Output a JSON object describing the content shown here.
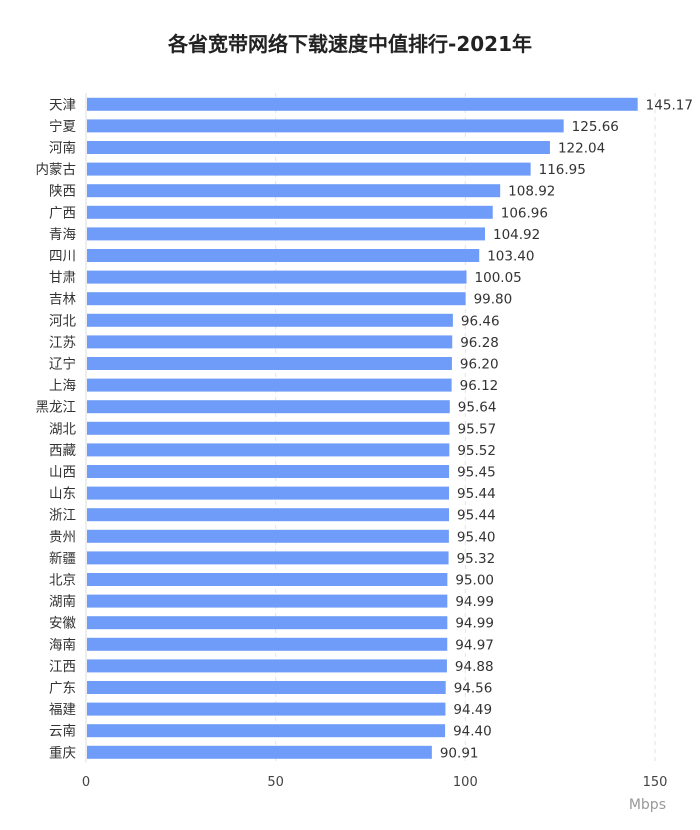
{
  "chart_data": {
    "type": "bar",
    "orientation": "horizontal",
    "title": "各省宽带网络下载速度中值排行-2021年",
    "xlabel": "Mbps",
    "ylabel": "",
    "xlim": [
      0,
      150
    ],
    "xticks": [
      0,
      50,
      100,
      150
    ],
    "grid": "vertical dashed",
    "bar_color": "#6f9cf8",
    "categories": [
      "天津",
      "宁夏",
      "河南",
      "内蒙古",
      "陕西",
      "广西",
      "青海",
      "四川",
      "甘肃",
      "吉林",
      "河北",
      "江苏",
      "辽宁",
      "上海",
      "黑龙江",
      "湖北",
      "西藏",
      "山西",
      "山东",
      "浙江",
      "贵州",
      "新疆",
      "北京",
      "湖南",
      "安徽",
      "海南",
      "江西",
      "广东",
      "福建",
      "云南",
      "重庆"
    ],
    "values": [
      145.17,
      125.66,
      122.04,
      116.95,
      108.92,
      106.96,
      104.92,
      103.4,
      100.05,
      99.8,
      96.46,
      96.28,
      96.2,
      96.12,
      95.64,
      95.57,
      95.52,
      95.45,
      95.44,
      95.44,
      95.4,
      95.32,
      95.0,
      94.99,
      94.99,
      94.97,
      94.88,
      94.56,
      94.49,
      94.4,
      90.91
    ],
    "data_labels": [
      "145.17",
      "125.66",
      "122.04",
      "116.95",
      "108.92",
      "106.96",
      "104.92",
      "103.40",
      "100.05",
      "99.80",
      "96.46",
      "96.28",
      "96.20",
      "96.12",
      "95.64",
      "95.57",
      "95.52",
      "95.45",
      "95.44",
      "95.44",
      "95.40",
      "95.32",
      "95.00",
      "94.99",
      "94.99",
      "94.97",
      "94.88",
      "94.56",
      "94.49",
      "94.40",
      "90.91"
    ]
  }
}
